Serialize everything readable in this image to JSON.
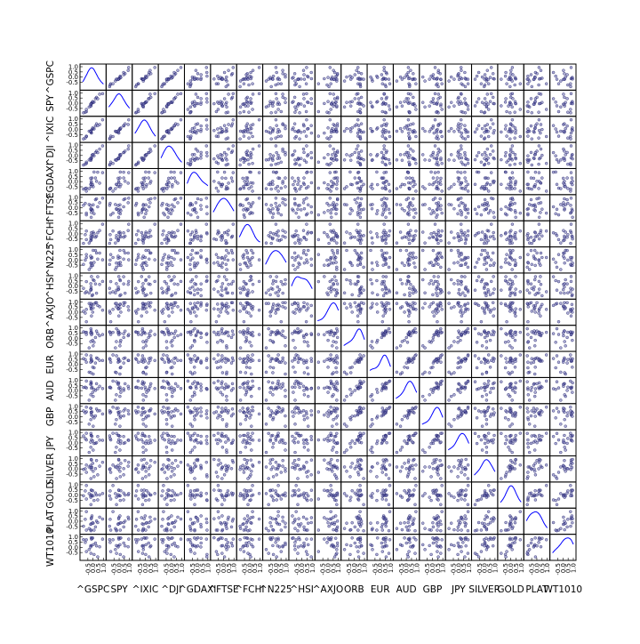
{
  "chart_data": {
    "type": "scatter",
    "subtype": "scatter-matrix",
    "title": "",
    "diagonal": "kde",
    "grid": false,
    "variables": [
      "^GSPC",
      "SPY",
      "^IXIC",
      "^DJI",
      "^GDAXI",
      "^FTSE",
      "^FCHI",
      "^N225",
      "^HSI",
      "^AXJO",
      "ORB",
      "EUR",
      "AUD",
      "GBP",
      "JPY",
      "SILVER",
      "GOLD",
      "PLAT",
      "WT1010"
    ],
    "tick_labels": [
      "-1.0",
      "-0.5",
      "0.0",
      "0.5",
      "1.0"
    ],
    "axis_range": [
      -1.0,
      1.0
    ],
    "point_color": "#6b6bb0",
    "kde_color": "#0000ff"
  }
}
